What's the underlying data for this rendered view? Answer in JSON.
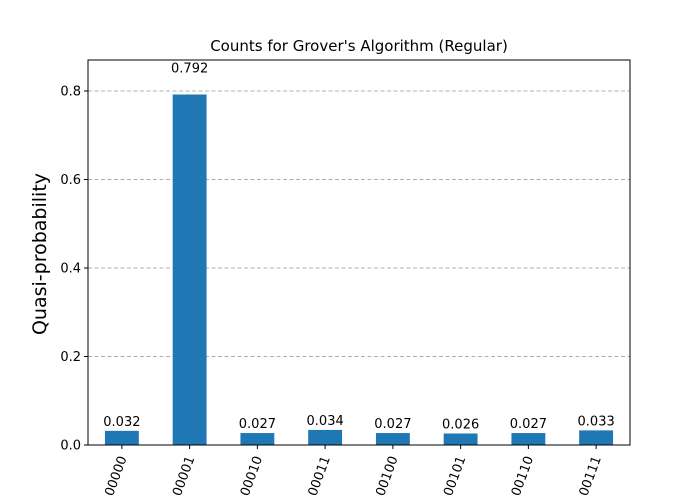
{
  "chart_data": {
    "type": "bar",
    "title": "Counts for Grover's Algorithm (Regular)",
    "xlabel": "",
    "ylabel": "Quasi-probability",
    "categories": [
      "00000",
      "00001",
      "00010",
      "00011",
      "00100",
      "00101",
      "00110",
      "00111"
    ],
    "values": [
      0.032,
      0.792,
      0.027,
      0.034,
      0.027,
      0.026,
      0.027,
      0.033
    ],
    "data_labels": [
      "0.032",
      "0.792",
      "0.027",
      "0.034",
      "0.027",
      "0.026",
      "0.027",
      "0.033"
    ],
    "ylim": [
      0,
      0.87
    ],
    "yticks": [
      0.0,
      0.2,
      0.4,
      0.6,
      0.8
    ],
    "ytick_labels": [
      "0.0",
      "0.2",
      "0.4",
      "0.6",
      "0.8"
    ],
    "xtick_rotation_deg": 70,
    "grid": "y-dashed",
    "bar_color": "#1f77b4"
  }
}
